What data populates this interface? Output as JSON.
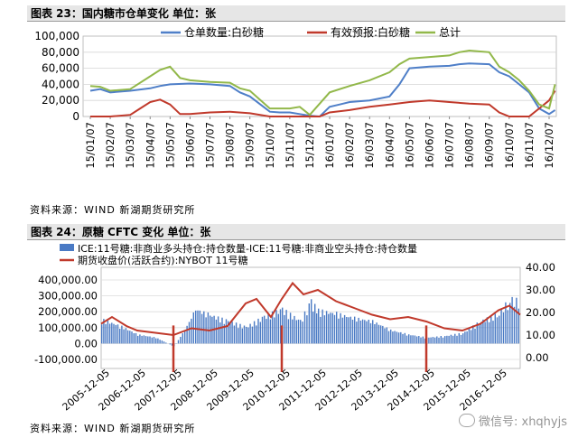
{
  "figure1": {
    "title": "图表 23：国内糖市仓单变化  单位：张",
    "source": "资料来源：WIND 新湖期货研究所",
    "chart_data": {
      "type": "line",
      "title": "图表 23：国内糖市仓单变化  单位：张",
      "ylim": [
        0,
        100000
      ],
      "yticks": [
        "100,000",
        "80,000",
        "60,000",
        "40,000",
        "20,000",
        "0"
      ],
      "xticks": [
        "15/01/07",
        "15/02/07",
        "15/03/07",
        "15/04/07",
        "15/05/07",
        "15/06/07",
        "15/07/07",
        "15/08/07",
        "15/09/07",
        "15/10/07",
        "15/11/07",
        "15/12/07",
        "16/01/07",
        "16/02/07",
        "16/03/07",
        "16/04/07",
        "16/05/07",
        "16/06/07",
        "16/07/07",
        "16/08/07",
        "16/09/07",
        "16/10/07",
        "16/11/07",
        "16/12/07"
      ],
      "legend_position": "top",
      "series": [
        {
          "name": "仓单数量:白砂糖",
          "color": "#4f7fc8",
          "x": [
            0,
            0.5,
            1,
            2,
            3,
            3.5,
            4,
            5,
            6,
            7,
            7.5,
            8,
            9,
            9.5,
            10,
            10.5,
            11,
            11.5,
            12,
            12.5,
            13,
            14,
            15,
            15.5,
            16,
            17,
            18,
            18.5,
            19,
            20,
            20.5,
            21,
            21.5,
            22,
            22.5,
            23,
            23.3
          ],
          "y": [
            32000,
            34000,
            30000,
            32000,
            35000,
            38000,
            40000,
            41000,
            40000,
            38000,
            30000,
            25000,
            6000,
            5000,
            5000,
            3000,
            1000,
            0,
            12000,
            15000,
            18000,
            20000,
            25000,
            40000,
            60000,
            62000,
            63000,
            65000,
            66000,
            65000,
            55000,
            50000,
            40000,
            30000,
            10000,
            3000,
            8000
          ]
        },
        {
          "name": "有效预报:白砂糖",
          "color": "#c0392b",
          "x": [
            0,
            1,
            2,
            2.5,
            3,
            3.5,
            4,
            4.5,
            5,
            6,
            7,
            8,
            9,
            10,
            11,
            11.5,
            12,
            13,
            14,
            15,
            16,
            17,
            18,
            19,
            20,
            20.5,
            21,
            22,
            22.5,
            23,
            23.3
          ],
          "y": [
            0,
            0,
            2000,
            10000,
            18000,
            21000,
            15000,
            3000,
            3000,
            5000,
            6000,
            4000,
            0,
            0,
            0,
            0,
            5000,
            8000,
            12000,
            15000,
            18000,
            20000,
            18000,
            16000,
            15000,
            5000,
            0,
            0,
            10000,
            20000,
            32000
          ]
        },
        {
          "name": "总计",
          "color": "#92b84a",
          "x": [
            0,
            0.5,
            1,
            2,
            3,
            3.5,
            4,
            4.5,
            5,
            6,
            7,
            7.5,
            8,
            9,
            10,
            10.5,
            11,
            12,
            13,
            14,
            15,
            15.5,
            16,
            17,
            18,
            18.5,
            19,
            20,
            20.5,
            21,
            21.5,
            22,
            22.5,
            23,
            23.3
          ],
          "y": [
            38000,
            37000,
            32000,
            34000,
            50000,
            58000,
            62000,
            48000,
            45000,
            43000,
            42000,
            35000,
            32000,
            10000,
            10000,
            12000,
            2000,
            30000,
            38000,
            45000,
            55000,
            65000,
            72000,
            74000,
            76000,
            80000,
            82000,
            80000,
            62000,
            55000,
            45000,
            32000,
            15000,
            10000,
            40000
          ]
        }
      ]
    }
  },
  "figure2": {
    "title": "图表 24：原糖 CFTC 变化  单位：张",
    "source": "资料来源：WIND 新湖期货研究所",
    "chart_data": {
      "type": "bar",
      "title": "图表 24：原糖 CFTC 变化  单位：张",
      "ylim_left": [
        -100000,
        400000
      ],
      "ylim_right": [
        0,
        40
      ],
      "yticks_left": [
        "400,000.00",
        "300,000.00",
        "200,000.00",
        "100,000.00",
        "0.00",
        "-100,000.00"
      ],
      "yticks_right": [
        "40.00",
        "30.00",
        "20.00",
        "10.00",
        "0.00"
      ],
      "xticks": [
        "2005-12-05",
        "2006-12-05",
        "2007-12-05",
        "2008-12-05",
        "2009-12-05",
        "2010-12-05",
        "2011-12-05",
        "2012-12-05",
        "2013-12-05",
        "2014-12-05",
        "2015-12-05",
        "2016-12-05"
      ],
      "legend_position": "top",
      "series": [
        {
          "name": "ICE:11号糖:非商业多头持仓:持仓数量-ICE:11号糖:非商业空头持仓:持仓数量",
          "type": "bar",
          "color": "#4a7ac4",
          "x": [
            0,
            0.5,
            1,
            1.5,
            2,
            2.3,
            2.6,
            3,
            3.5,
            4,
            4.5,
            5,
            5.5,
            5.8,
            6,
            6.5,
            7,
            7.5,
            8,
            8.5,
            9,
            9.5,
            10,
            10.5,
            11,
            11.3,
            11.6
          ],
          "y": [
            160000,
            120000,
            60000,
            40000,
            -20000,
            90000,
            230000,
            190000,
            150000,
            110000,
            180000,
            230000,
            150000,
            280000,
            220000,
            200000,
            170000,
            150000,
            90000,
            60000,
            40000,
            50000,
            70000,
            150000,
            200000,
            300000,
            280000
          ]
        },
        {
          "name": "期货收盘价(活跃合约):NYBOT 11号糖",
          "type": "line",
          "axis": "right",
          "color": "#c0392b",
          "x": [
            0,
            0.3,
            0.7,
            1,
            1.5,
            2,
            2.5,
            3,
            3.5,
            4,
            4.3,
            4.7,
            5,
            5.3,
            5.6,
            6,
            6.5,
            7,
            7.5,
            8,
            8.5,
            9,
            9.5,
            10,
            10.5,
            11,
            11.3,
            11.6
          ],
          "y": [
            15,
            18,
            14,
            12,
            11,
            10,
            13,
            12,
            14,
            24,
            26,
            18,
            26,
            33,
            28,
            30,
            25,
            22,
            19,
            17,
            18,
            16,
            13,
            12,
            15,
            21,
            23,
            19
          ]
        }
      ]
    }
  },
  "watermark": {
    "text": "微信号: xhqhyjs"
  }
}
